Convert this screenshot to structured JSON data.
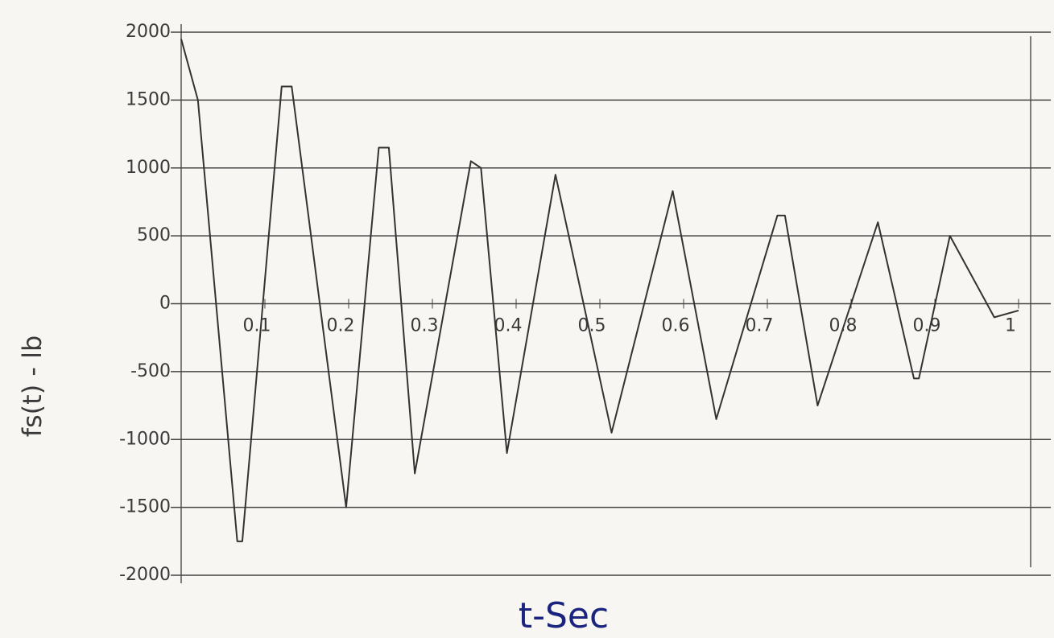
{
  "chart_data": {
    "type": "line",
    "x_label": "t-Sec",
    "y_label": "fs(t) - lb",
    "xlim": [
      0,
      1
    ],
    "ylim": [
      -2000,
      2000
    ],
    "xticks": [
      0.1,
      0.2,
      0.3,
      0.4,
      0.5,
      0.6,
      0.7,
      0.8,
      0.9,
      1
    ],
    "yticks": [
      -2000,
      -1500,
      -1000,
      -500,
      0,
      500,
      1000,
      1500,
      2000
    ],
    "grid": true,
    "series": [
      {
        "color": "#333333",
        "x": [
          0,
          0.02,
          0.067,
          0.073,
          0.12,
          0.132,
          0.197,
          0.236,
          0.248,
          0.279,
          0.346,
          0.358,
          0.389,
          0.447,
          0.514,
          0.587,
          0.639,
          0.712,
          0.721,
          0.76,
          0.832,
          0.875,
          0.881,
          0.918,
          0.971,
          1
        ],
        "values": [
          1950,
          1500,
          -1750,
          -1750,
          1600,
          1600,
          -1500,
          1150,
          1150,
          -1250,
          1050,
          1000,
          -1100,
          950,
          -950,
          830,
          -850,
          650,
          650,
          -750,
          600,
          -550,
          -550,
          500,
          -100,
          -50
        ]
      }
    ]
  }
}
